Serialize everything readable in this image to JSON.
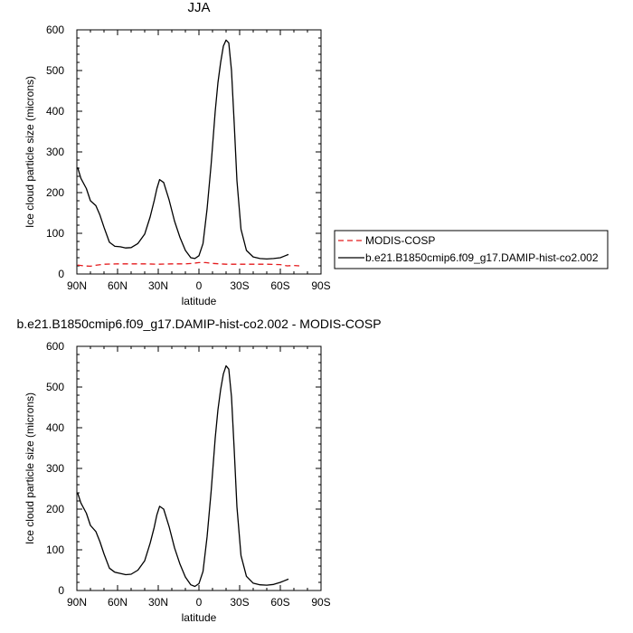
{
  "chart_data": [
    {
      "type": "line",
      "title": "JJA",
      "xlabel": "latitude",
      "ylabel": "Ice cloud particle size (microns)",
      "xlim": [
        -90,
        90
      ],
      "ylim": [
        0,
        600
      ],
      "xticks": [
        {
          "value": -90,
          "label": "90N"
        },
        {
          "value": -60,
          "label": "60N"
        },
        {
          "value": -30,
          "label": "30N"
        },
        {
          "value": 0,
          "label": "0"
        },
        {
          "value": 30,
          "label": "30S"
        },
        {
          "value": 60,
          "label": "60S"
        },
        {
          "value": 90,
          "label": "90S"
        }
      ],
      "yticks": [
        0,
        100,
        200,
        300,
        400,
        500,
        600
      ],
      "legend": "right",
      "series": [
        {
          "name": "MODIS-COSP",
          "color": "#e41a1c",
          "dash": true,
          "x": [
            -89.5,
            -85,
            -80,
            -75,
            -70,
            -60,
            -50,
            -40,
            -30,
            -20,
            -10,
            -5,
            0,
            5,
            10,
            20,
            30,
            40,
            50,
            60,
            65,
            70,
            74
          ],
          "y": [
            22,
            20,
            19,
            22,
            24,
            25,
            25,
            25,
            24,
            25,
            25,
            26,
            28,
            28,
            26,
            24,
            24,
            24,
            24,
            23,
            20,
            21,
            20
          ]
        },
        {
          "name": "b.e21.B1850cmip6.f09_g17.DAMIP-hist-co2.002",
          "color": "#000000",
          "dash": false,
          "x": [
            -89.5,
            -87,
            -83,
            -80,
            -76,
            -73,
            -70,
            -66,
            -62,
            -58,
            -54,
            -50,
            -45,
            -40,
            -36,
            -33,
            -31,
            -29,
            -26,
            -22,
            -18,
            -14,
            -10,
            -6,
            -3,
            0,
            3,
            6,
            9,
            12,
            14,
            16,
            18,
            20,
            22,
            24,
            26,
            28,
            31,
            35,
            40,
            45,
            50,
            55,
            60,
            63,
            66
          ],
          "y": [
            262,
            235,
            210,
            180,
            168,
            145,
            115,
            78,
            68,
            67,
            64,
            65,
            75,
            98,
            140,
            180,
            210,
            232,
            225,
            182,
            130,
            90,
            58,
            40,
            38,
            45,
            75,
            160,
            270,
            400,
            470,
            520,
            560,
            575,
            568,
            500,
            370,
            230,
            110,
            58,
            42,
            38,
            37,
            38,
            40,
            44,
            48
          ]
        }
      ]
    },
    {
      "type": "line",
      "title": "b.e21.B1850cmip6.f09_g17.DAMIP-hist-co2.002 - MODIS-COSP",
      "xlabel": "latitude",
      "ylabel": "Ice cloud particle size (microns)",
      "xlim": [
        -90,
        90
      ],
      "ylim": [
        0,
        600
      ],
      "xticks": [
        {
          "value": -90,
          "label": "90N"
        },
        {
          "value": -60,
          "label": "60N"
        },
        {
          "value": -30,
          "label": "30N"
        },
        {
          "value": 0,
          "label": "0"
        },
        {
          "value": 30,
          "label": "30S"
        },
        {
          "value": 60,
          "label": "60S"
        },
        {
          "value": 90,
          "label": "90S"
        }
      ],
      "yticks": [
        0,
        100,
        200,
        300,
        400,
        500,
        600
      ],
      "series": [
        {
          "color": "#000000",
          "dash": false,
          "x": [
            -89.5,
            -87,
            -83,
            -80,
            -76,
            -73,
            -70,
            -66,
            -62,
            -58,
            -54,
            -50,
            -45,
            -40,
            -36,
            -33,
            -31,
            -29,
            -26,
            -22,
            -18,
            -14,
            -10,
            -6,
            -3,
            0,
            3,
            6,
            9,
            12,
            14,
            16,
            18,
            20,
            22,
            24,
            26,
            28,
            31,
            35,
            40,
            45,
            50,
            55,
            60,
            63,
            66
          ],
          "y": [
            240,
            215,
            190,
            160,
            145,
            120,
            90,
            55,
            45,
            42,
            39,
            40,
            50,
            73,
            116,
            155,
            186,
            207,
            200,
            157,
            105,
            65,
            33,
            14,
            10,
            17,
            47,
            132,
            244,
            375,
            444,
            494,
            532,
            552,
            544,
            476,
            346,
            206,
            86,
            35,
            18,
            14,
            13,
            15,
            20,
            24,
            28
          ]
        }
      ]
    }
  ]
}
